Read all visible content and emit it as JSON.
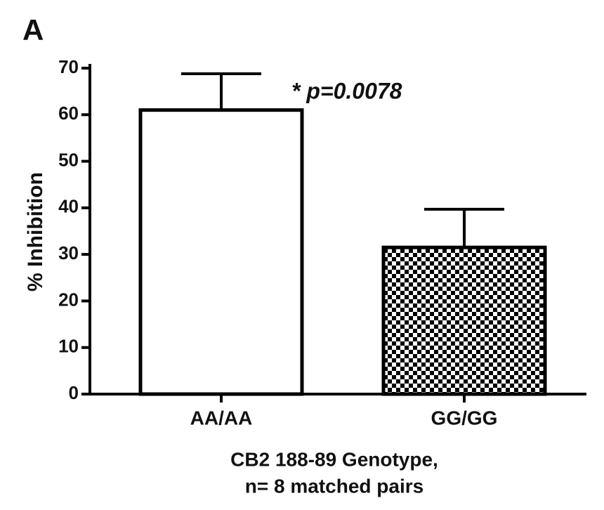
{
  "chart_data": {
    "type": "bar",
    "panel_label": "A",
    "categories": [
      "AA/AA",
      "GG/GG"
    ],
    "values": [
      61,
      31.5
    ],
    "errors": [
      7.8,
      8.2
    ],
    "bar_fills": [
      "#ffffff",
      "checker"
    ],
    "color": "#000000",
    "ylabel": "% Inhibition",
    "xlabel": [
      "CB2 188-89 Genotype,",
      "n= 8 matched pairs"
    ],
    "annotation": "* p=0.0078",
    "ylim": [
      0,
      70
    ],
    "yticks": [
      0,
      10,
      20,
      30,
      40,
      50,
      60,
      70
    ],
    "grid": false
  }
}
